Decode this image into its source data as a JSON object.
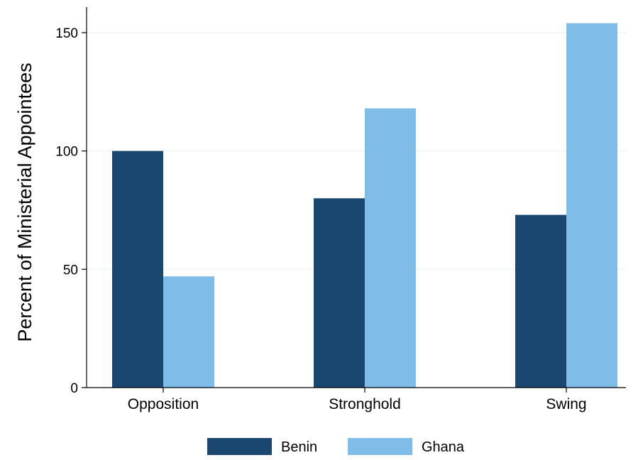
{
  "chart_data": {
    "type": "bar",
    "categories": [
      "Opposition",
      "Stronghold",
      "Swing"
    ],
    "series": [
      {
        "name": "Benin",
        "values": [
          100,
          80,
          73
        ],
        "color": "#1a476f"
      },
      {
        "name": "Ghana",
        "values": [
          47,
          118,
          154
        ],
        "color": "#80bce8"
      }
    ],
    "ylabel": "Percent of Ministerial Appointees",
    "yticks": [
      0,
      50,
      100,
      150
    ],
    "ylim": [
      0,
      160
    ],
    "grid": true,
    "legend_position": "bottom"
  }
}
